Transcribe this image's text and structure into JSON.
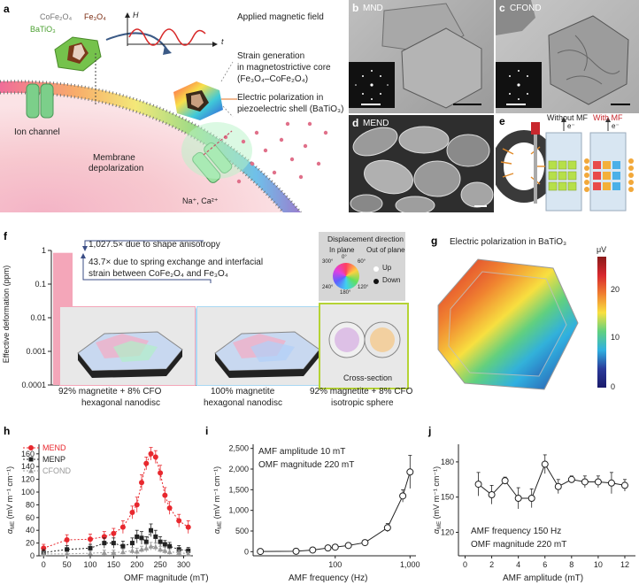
{
  "panels": {
    "a": "a",
    "b": "b",
    "c": "c",
    "d": "d",
    "e": "e",
    "f": "f",
    "g": "g",
    "h": "h",
    "i": "i",
    "j": "j"
  },
  "panel_a": {
    "cofe2o4": "CoFe₂O₄",
    "fe3o4": "Fe₃O₄",
    "batio3": "BaTiO₃",
    "field_title": "Applied magnetic field",
    "axis_h": "H",
    "axis_t": "t",
    "strain1": "Strain generation",
    "strain2": "in magnetostrictive core",
    "strain3": "(Fe₃O₄–CoFe₂O₄)",
    "pol1": "Electric polarization in",
    "pol2": "piezoelectric shell (BaTiO₃)",
    "ion_channel": "Ion channel",
    "membrane1": "Membrane",
    "membrane2": "depolarization",
    "ions": "Na⁺, Ca²⁺"
  },
  "panel_b": {
    "label": "MND"
  },
  "panel_c": {
    "label": "CFOND"
  },
  "panel_d": {
    "label": "MEND"
  },
  "panel_e": {
    "without": "Without MF",
    "with": "With MF",
    "coil": "Coil",
    "electron": "e⁻"
  },
  "panel_f": {
    "ylabel": "Effective deformation (ppm)",
    "annotation1": "1,027.5× due to shape anisotropy",
    "annotation2a": "43.7× due to spring exchange and interfacial",
    "annotation2b": "strain between CoFe₂O₄ and Fe₃O₄",
    "legend_title": "Displacement direction",
    "in_plane": "In plane",
    "out_of_plane": "Out of plane",
    "up": "Up",
    "down": "Down",
    "deg0": "0°",
    "deg60": "60°",
    "deg120": "120°",
    "deg180": "180°",
    "deg240": "240°",
    "deg300": "300°",
    "cross_section": "Cross-section",
    "cat1a": "92% magnetite + 8% CFO",
    "cat1b": "hexagonal nanodisc",
    "cat2a": "100% magnetite",
    "cat2b": "hexagonal nanodisc",
    "cat3a": "92% magnetite + 8% CFO",
    "cat3b": "isotropic sphere"
  },
  "panel_g": {
    "title": "Electric polarization in BaTiO₃",
    "unit": "μV"
  },
  "panel_h": {
    "xlabel": "OMF magnitude (mT)"
  },
  "panel_i": {
    "xlabel": "AMF frequency (Hz)",
    "note1": "AMF amplitude 10 mT",
    "note2": "OMF magnitude 220 mT"
  },
  "panel_j": {
    "xlabel": "AMF amplitude (mT)",
    "note1": "AMF frequency 150 Hz",
    "note2": "OMF magnitude 220 mT"
  },
  "chart_data": [
    {
      "type": "bar",
      "panel": "f",
      "ylabel": "Effective deformation (ppm)",
      "yscale": "log",
      "ylim": [
        0.0001,
        1
      ],
      "yticks": [
        "0.0001",
        "0.001",
        "0.01",
        "0.1",
        "1"
      ],
      "categories": [
        "92% magnetite + 8% CFO hexagonal nanodisc",
        "100% magnetite hexagonal nanodisc",
        "92% magnetite + 8% CFO isotropic sphere"
      ],
      "values": [
        0.85,
        0.019,
        0.00083
      ],
      "colors": [
        "#f4a6b9",
        "#a9d8f3",
        "#b5d334"
      ]
    },
    {
      "type": "heatmap",
      "panel": "g",
      "title": "Electric polarization in BaTiO₃",
      "colorbar_unit": "μV",
      "colorbar_range": [
        0,
        28
      ],
      "colorbar_ticks": [
        0,
        10,
        20
      ]
    },
    {
      "type": "line",
      "panel": "h",
      "xlabel": "OMF magnitude (mT)",
      "ylabel": "αME (mV m⁻¹ cm⁻¹)",
      "xlim": [
        -10,
        320
      ],
      "ylim": [
        0,
        175
      ],
      "xticks": [
        0,
        50,
        100,
        150,
        200,
        250,
        300
      ],
      "yticks": [
        0,
        20,
        40,
        60,
        80,
        100,
        120,
        140,
        160
      ],
      "series": [
        {
          "name": "MEND",
          "color": "#e8282e",
          "marker": "circle",
          "x": [
            0,
            50,
            100,
            130,
            150,
            170,
            190,
            200,
            210,
            220,
            230,
            240,
            250,
            260,
            270,
            290,
            310
          ],
          "y": [
            12,
            25,
            26,
            30,
            35,
            45,
            68,
            80,
            115,
            145,
            160,
            155,
            130,
            95,
            75,
            55,
            45
          ],
          "err": [
            6,
            8,
            8,
            8,
            8,
            10,
            10,
            12,
            12,
            10,
            10,
            10,
            12,
            12,
            10,
            10,
            10
          ]
        },
        {
          "name": "MENP",
          "color": "#222222",
          "marker": "square",
          "x": [
            0,
            50,
            100,
            130,
            150,
            170,
            190,
            200,
            210,
            220,
            230,
            240,
            250,
            260,
            270,
            290,
            310
          ],
          "y": [
            5,
            10,
            12,
            20,
            20,
            15,
            20,
            30,
            28,
            22,
            40,
            30,
            22,
            18,
            15,
            10,
            8
          ],
          "err": [
            5,
            6,
            6,
            8,
            8,
            8,
            8,
            10,
            10,
            8,
            10,
            10,
            8,
            6,
            6,
            6,
            5
          ]
        },
        {
          "name": "CFOND",
          "color": "#999999",
          "marker": "triangle",
          "x": [
            0,
            50,
            100,
            130,
            150,
            170,
            190,
            200,
            210,
            220,
            230,
            240,
            250,
            260,
            270,
            290,
            310
          ],
          "y": [
            3,
            3,
            4,
            5,
            5,
            6,
            8,
            7,
            10,
            12,
            15,
            14,
            10,
            8,
            6,
            5,
            3
          ],
          "err": [
            3,
            3,
            3,
            4,
            4,
            4,
            5,
            5,
            5,
            6,
            6,
            6,
            5,
            5,
            4,
            4,
            3
          ]
        }
      ]
    },
    {
      "type": "line",
      "panel": "i",
      "xlabel": "AMF frequency (Hz)",
      "ylabel": "αME (mV m⁻¹ cm⁻¹)",
      "xscale": "log",
      "xlim": [
        8,
        1200
      ],
      "ylim": [
        -100,
        2600
      ],
      "xticks": [
        100,
        1000
      ],
      "xticklabels": [
        "100",
        "1,000"
      ],
      "yticks": [
        0,
        500,
        1000,
        1500,
        2000,
        2500
      ],
      "yticklabels": [
        "0",
        "500",
        "1,000",
        "1,500",
        "2,000",
        "2,500"
      ],
      "series": [
        {
          "x": [
            10,
            30,
            50,
            80,
            100,
            150,
            250,
            500,
            800,
            1000
          ],
          "y": [
            5,
            10,
            40,
            90,
            110,
            150,
            220,
            580,
            1350,
            1930
          ],
          "err": [
            20,
            20,
            30,
            40,
            40,
            40,
            50,
            100,
            150,
            400
          ]
        }
      ]
    },
    {
      "type": "line",
      "panel": "j",
      "xlabel": "AMF amplitude (mT)",
      "ylabel": "αME (mV m⁻¹ cm⁻¹)",
      "xlim": [
        -0.5,
        12.8
      ],
      "ylim": [
        100,
        195
      ],
      "xticks": [
        0,
        2,
        4,
        6,
        8,
        10,
        12
      ],
      "yticks": [
        120,
        150,
        180
      ],
      "series": [
        {
          "x": [
            1,
            2,
            3,
            4,
            5,
            6,
            7,
            8,
            9,
            10,
            11,
            12
          ],
          "y": [
            161,
            152,
            164,
            149,
            149,
            178,
            159,
            165,
            163,
            163,
            162,
            160
          ],
          "err": [
            10,
            8,
            3,
            9,
            8,
            8,
            6,
            3,
            5,
            5,
            9,
            5
          ]
        }
      ]
    }
  ]
}
